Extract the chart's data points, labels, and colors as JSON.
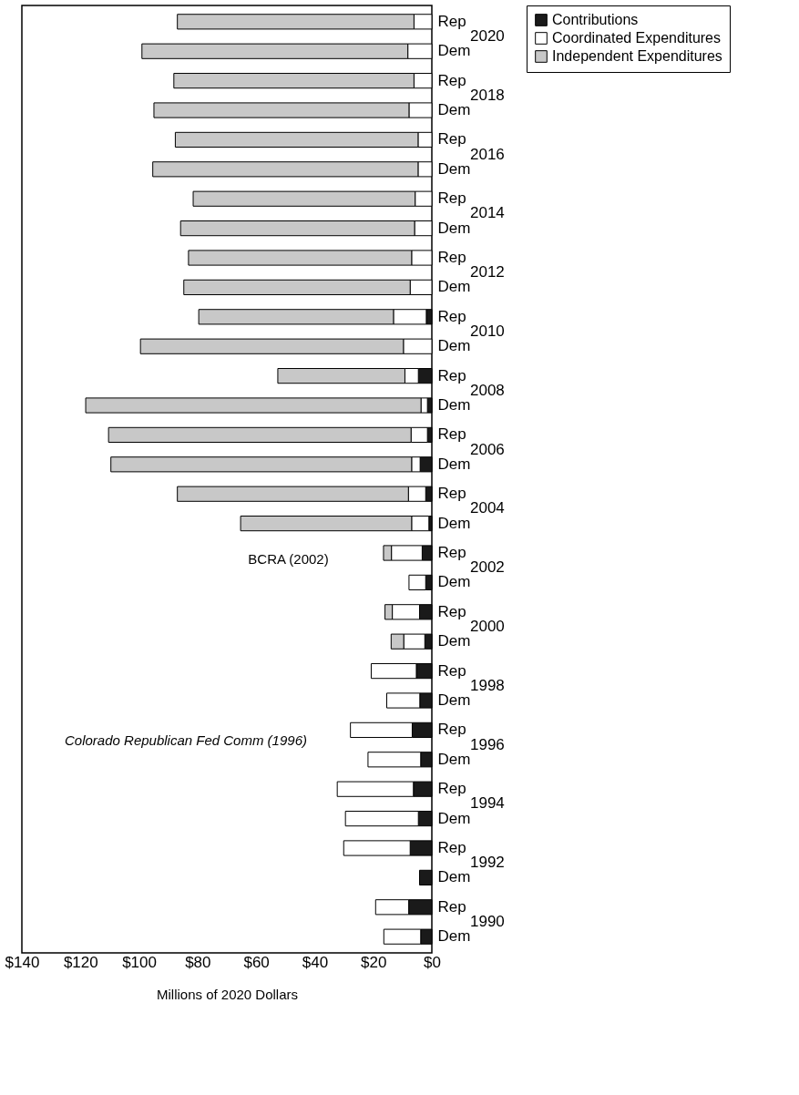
{
  "chart_data": {
    "type": "bar",
    "orientation": "horizontal",
    "stacked": true,
    "xlabel": "Millions of 2020 Dollars",
    "categories": [
      "Rep",
      "Dem",
      "Rep",
      "Dem",
      "Rep",
      "Dem",
      "Rep",
      "Dem",
      "Rep",
      "Dem",
      "Rep",
      "Dem",
      "Rep",
      "Dem",
      "Rep",
      "Dem",
      "Rep",
      "Dem",
      "Rep",
      "Dem",
      "Rep",
      "Dem",
      "Rep",
      "Dem",
      "Rep",
      "Dem",
      "Rep",
      "Dem",
      "Rep",
      "Dem",
      "Rep",
      "Dem"
    ],
    "series": [
      {
        "name": "Contributions",
        "color": "#1a1a1a",
        "values": [
          0,
          0,
          0,
          0,
          0,
          0,
          0,
          0,
          0,
          0,
          1.9,
          0,
          4.6,
          1.5,
          1.5,
          4.0,
          2.1,
          1.0,
          3.3,
          2.1,
          4.2,
          2.4,
          5.3,
          4.1,
          6.7,
          3.8,
          6.3,
          4.6,
          7.4,
          4.2,
          7.9,
          3.8
        ]
      },
      {
        "name": "Coordinated Expenditures",
        "color": "#ffffff",
        "values": [
          6.1,
          8.2,
          6.1,
          7.8,
          4.7,
          4.7,
          5.7,
          5.9,
          6.9,
          7.4,
          11.2,
          9.7,
          4.6,
          2.2,
          5.6,
          2.9,
          5.9,
          5.9,
          10.5,
          5.7,
          9.3,
          7.2,
          15.4,
          11.3,
          21.1,
          18.0,
          26.0,
          24.9,
          22.7,
          0,
          11.3,
          12.6
        ]
      },
      {
        "name": "Independent Expenditures",
        "color": "#c8c8c8",
        "values": [
          80.8,
          90.8,
          82.0,
          87.1,
          82.9,
          90.6,
          75.8,
          79.9,
          76.2,
          77.3,
          66.5,
          89.8,
          43.4,
          114.5,
          103.3,
          102.7,
          78.9,
          58.4,
          2.7,
          0,
          2.5,
          4.3,
          0,
          0,
          0,
          0,
          0,
          0,
          0,
          0,
          0,
          0
        ]
      }
    ],
    "xlim": [
      140,
      0
    ],
    "xticks": [
      {
        "value": 140,
        "label": "$140"
      },
      {
        "value": 120,
        "label": "$120"
      },
      {
        "value": 100,
        "label": "$100"
      },
      {
        "value": 80,
        "label": "$80"
      },
      {
        "value": 60,
        "label": "$60"
      },
      {
        "value": 40,
        "label": "$40"
      },
      {
        "value": 20,
        "label": "$20"
      },
      {
        "value": 0,
        "label": "$0"
      }
    ],
    "annotations": [
      "2020",
      "2018",
      "2016",
      "2014",
      "2012",
      "2010",
      "2008",
      "2006",
      "2004",
      "2002",
      "2000",
      "1998",
      "1996",
      "1994",
      "1992",
      "1990",
      "Colorado Republican Fed Comm (1996)",
      "BCRA (2002)"
    ],
    "grid": false,
    "legend": "right"
  }
}
